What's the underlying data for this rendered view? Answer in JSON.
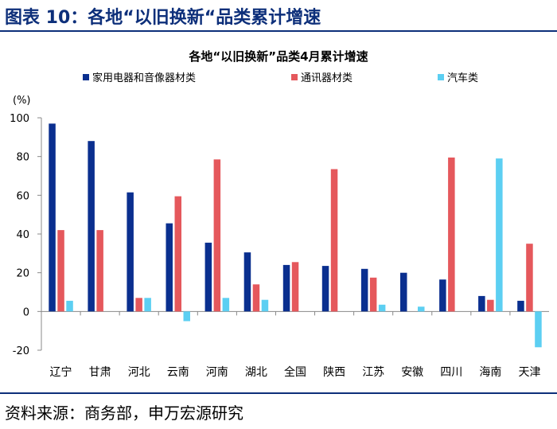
{
  "figure_title": "图表 10：各地“以旧换新“品类累计增速",
  "source": "资料来源：商务部，申万宏源研究",
  "colors": {
    "accent": "#0d2f7a"
  },
  "chart_data": {
    "type": "bar",
    "title": "各地“以旧换新”品类4月累计增速",
    "ylabel": "(%)",
    "xlabel": "",
    "ylim": [
      -20,
      100
    ],
    "yticks": [
      -20,
      0,
      20,
      40,
      60,
      80,
      100
    ],
    "legend_position": "top",
    "grid": false,
    "categories": [
      "辽宁",
      "甘肃",
      "河北",
      "云南",
      "河南",
      "湖北",
      "全国",
      "陕西",
      "江苏",
      "安徽",
      "四川",
      "海南",
      "天津"
    ],
    "series": [
      {
        "name": "家用电器和音像器材类",
        "color": "#0a2f8f",
        "values": [
          97,
          88,
          61.5,
          45.5,
          35.5,
          30.5,
          24,
          23.5,
          22,
          20,
          16.5,
          8,
          5.5
        ]
      },
      {
        "name": "通讯器材类",
        "color": "#e5585c",
        "values": [
          42,
          42,
          7,
          59.5,
          78.5,
          14,
          25.5,
          73.5,
          17.5,
          null,
          79.5,
          6,
          35
        ]
      },
      {
        "name": "汽车类",
        "color": "#5ccff2",
        "values": [
          5.5,
          null,
          7,
          -5,
          7,
          6,
          null,
          null,
          3.5,
          2.5,
          null,
          79,
          -18.5
        ]
      }
    ]
  }
}
